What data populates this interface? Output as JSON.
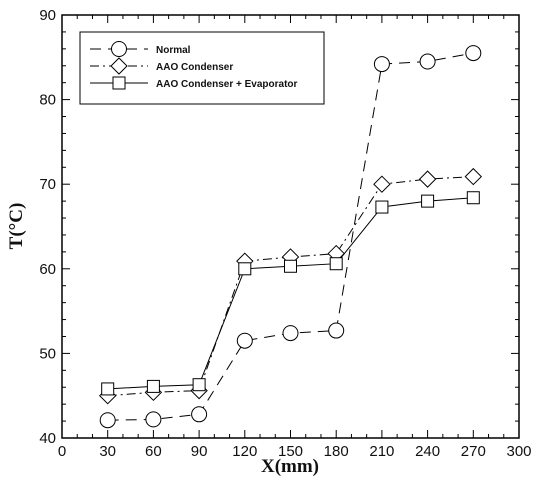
{
  "chart_data": {
    "type": "line",
    "xlabel": "X(mm)",
    "ylabel": "T(°C)",
    "xlim": [
      0,
      300
    ],
    "ylim": [
      40,
      90
    ],
    "x_ticks": [
      "0",
      "30",
      "60",
      "90",
      "120",
      "150",
      "180",
      "210",
      "240",
      "270",
      "300"
    ],
    "y_ticks": [
      "40",
      "50",
      "60",
      "70",
      "80",
      "90"
    ],
    "x": [
      30,
      60,
      90,
      120,
      150,
      180,
      210,
      240,
      270
    ],
    "grid": false,
    "legend_position": "top-left",
    "series": [
      {
        "name": "Normal",
        "marker": "circle",
        "line": "dashed",
        "values": [
          42.1,
          42.2,
          42.8,
          51.5,
          52.4,
          52.7,
          84.2,
          84.5,
          85.5
        ]
      },
      {
        "name": "AAO Condenser",
        "marker": "diamond",
        "line": "dash-dot",
        "values": [
          45.0,
          45.4,
          45.6,
          60.9,
          61.4,
          61.8,
          70.0,
          70.6,
          70.9
        ]
      },
      {
        "name": "AAO Condenser + Evaporator",
        "marker": "square",
        "line": "solid",
        "values": [
          45.8,
          46.1,
          46.3,
          60.0,
          60.3,
          60.6,
          67.3,
          68.0,
          68.4
        ]
      }
    ]
  }
}
